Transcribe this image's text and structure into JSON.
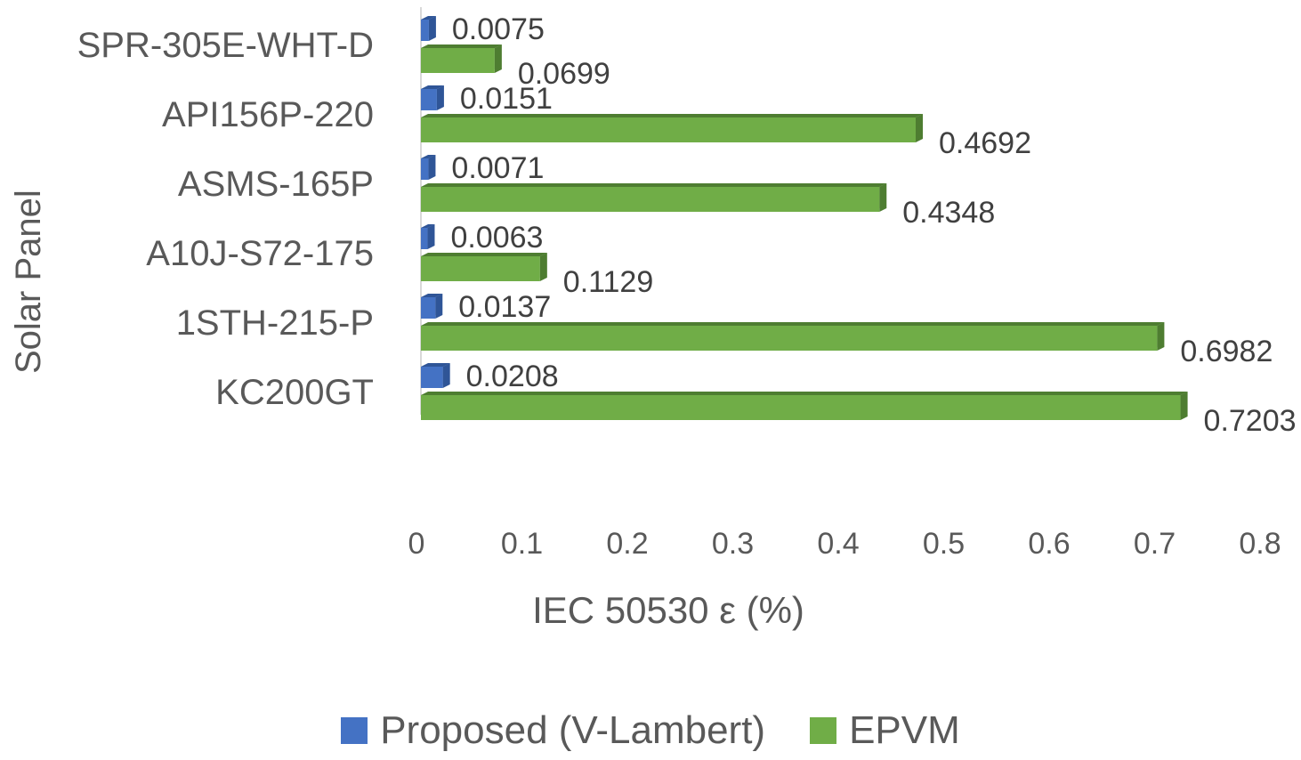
{
  "chart_data": {
    "type": "bar",
    "orientation": "horizontal",
    "categories": [
      "SPR-305E-WHT-D",
      "API156P-220",
      "ASMS-165P",
      "A10J-S72-175",
      "1STH-215-P",
      "KC200GT"
    ],
    "series": [
      {
        "name": "Proposed (V-Lambert)",
        "color": "#4472C4",
        "values": [
          0.0075,
          0.0151,
          0.0071,
          0.0063,
          0.0137,
          0.0208
        ]
      },
      {
        "name": "EPVM",
        "color": "#70AD47",
        "values": [
          0.0699,
          0.4692,
          0.4348,
          0.1129,
          0.6982,
          0.7203
        ]
      }
    ],
    "data_labels": [
      [
        "0.0075",
        "0.0151",
        "0.0071",
        "0.0063",
        "0.0137",
        "0.0208"
      ],
      [
        "0.0699",
        "0.4692",
        "0.4348",
        "0.1129",
        "0.6982",
        "0.7203"
      ]
    ],
    "xlim": [
      0,
      0.8
    ],
    "xticks": [
      "0",
      "0.1",
      "0.2",
      "0.3",
      "0.4",
      "0.5",
      "0.6",
      "0.7",
      "0.8"
    ],
    "xlabel": "IEC 50530  ε (%)",
    "ylabel": "Solar Panel",
    "legend_position": "bottom",
    "grid": false
  }
}
